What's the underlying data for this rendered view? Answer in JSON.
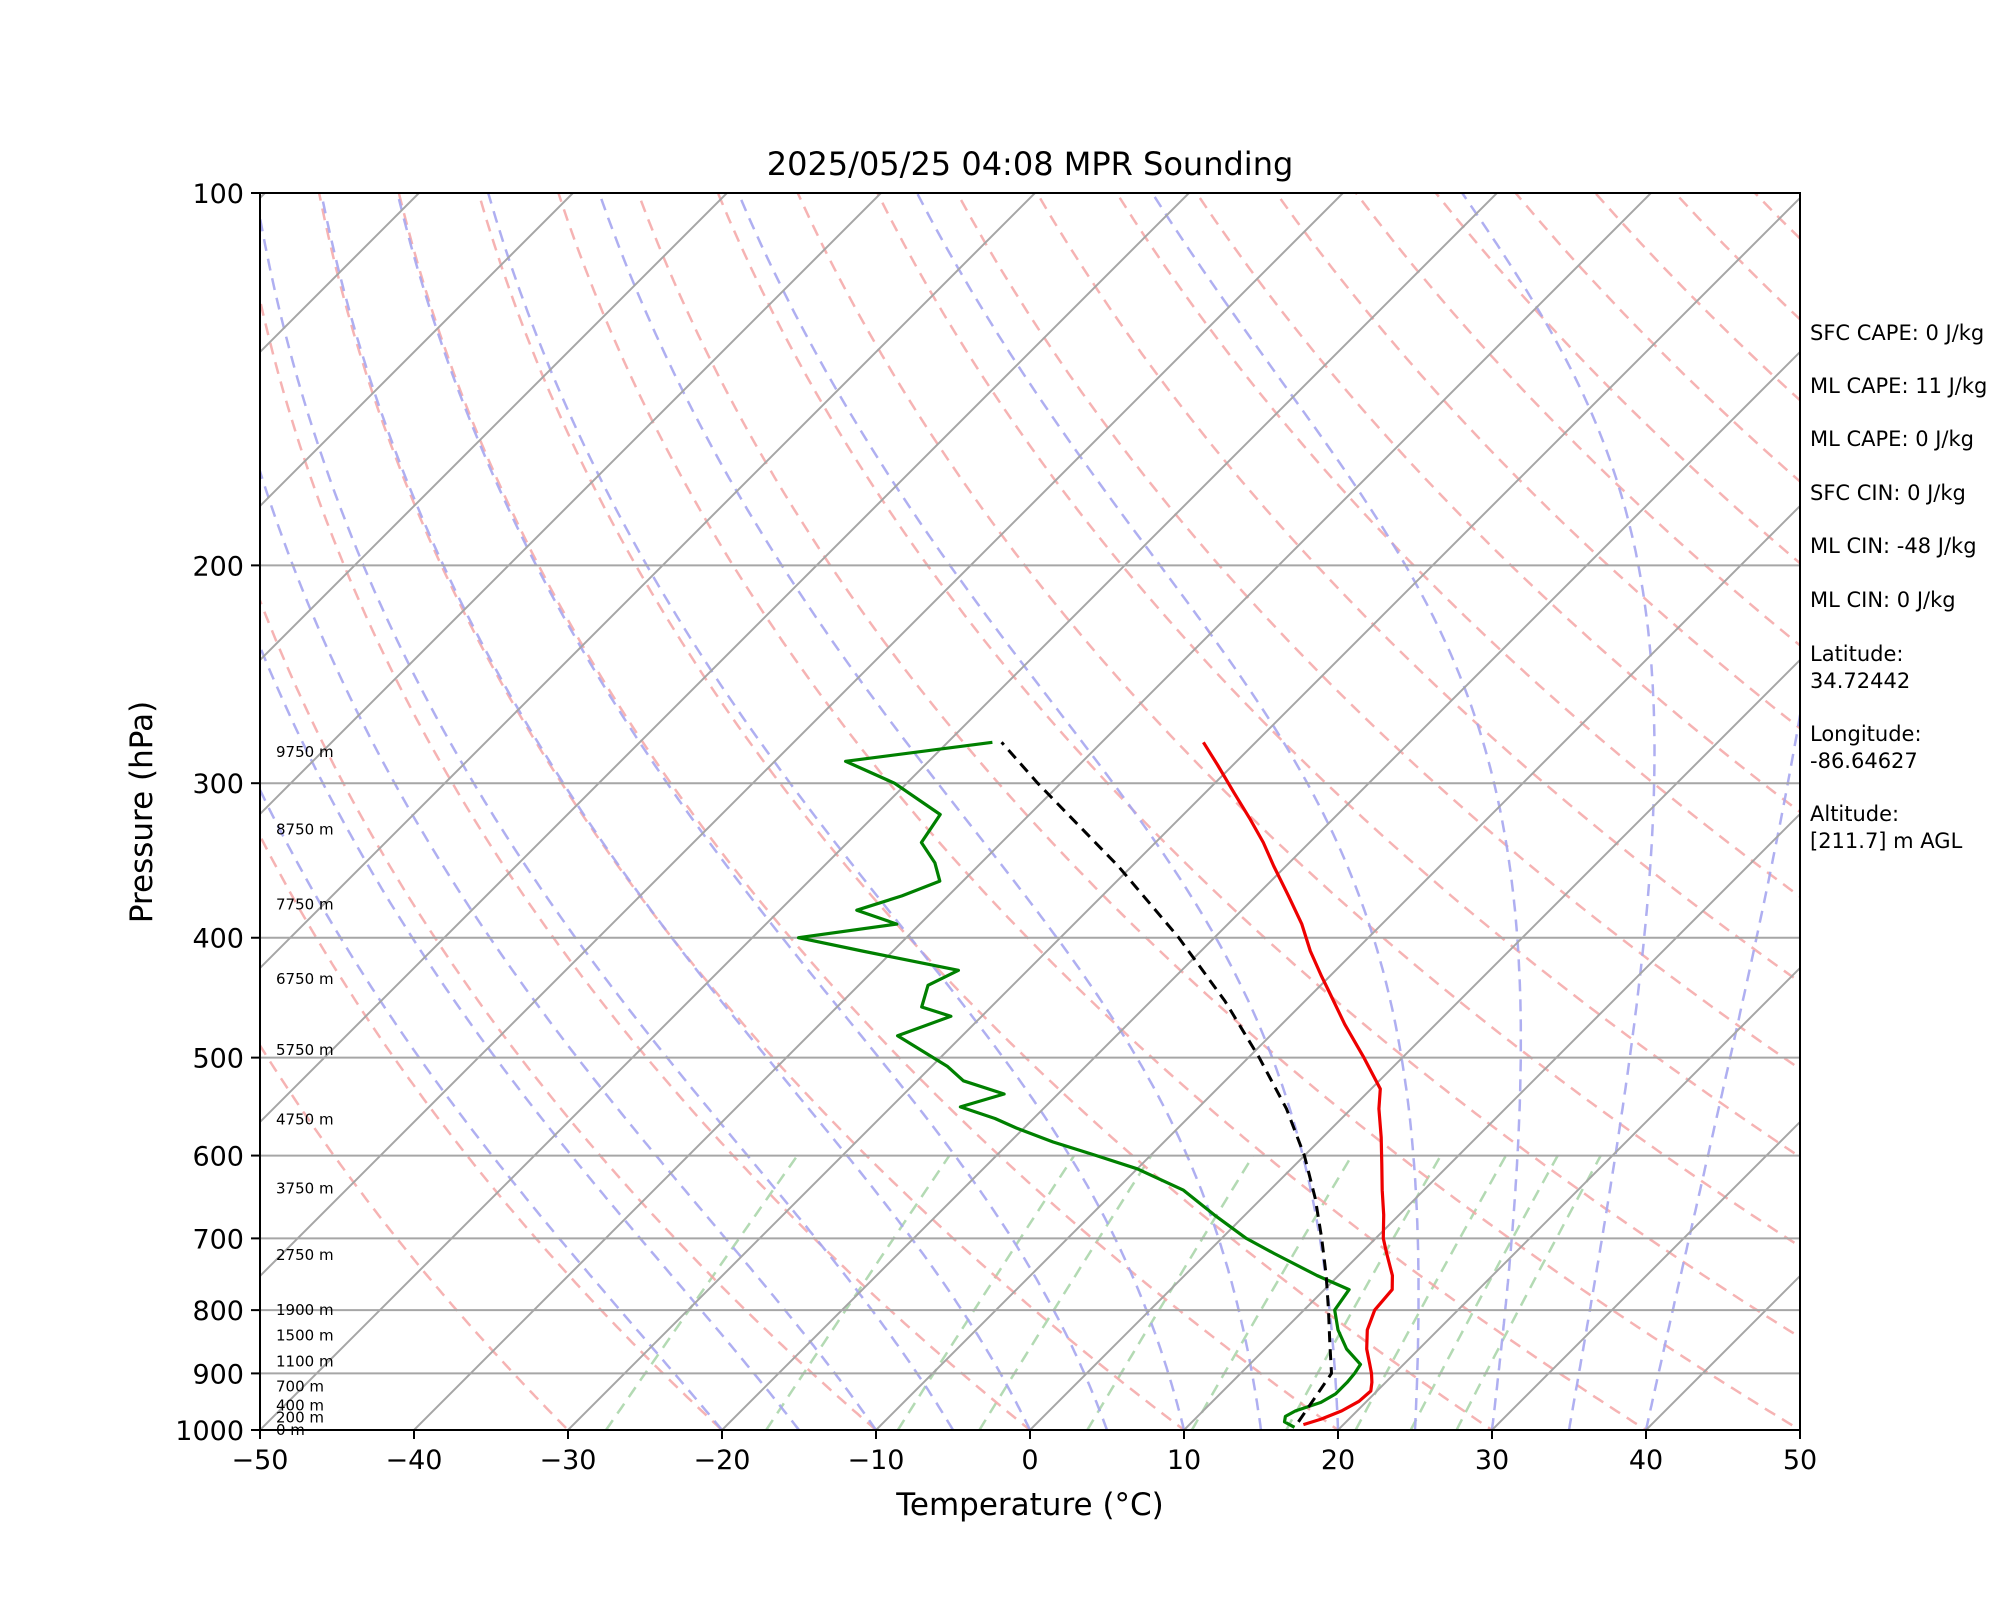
{
  "chart_data": {
    "type": "line",
    "subtype": "skew-t log-p diagram",
    "title": "2025/05/25 04:08 MPR Sounding",
    "xlabel": "Temperature (°C)",
    "ylabel": "Pressure (hPa)",
    "xlim": [
      -50,
      50
    ],
    "ylim": [
      1000,
      100
    ],
    "y_scale": "log",
    "x_ticks": [
      "−50",
      "−40",
      "−30",
      "−20",
      "−10",
      "0",
      "10",
      "20",
      "30",
      "40",
      "50"
    ],
    "x_tick_values": [
      -50,
      -40,
      -30,
      -20,
      -10,
      0,
      10,
      20,
      30,
      40,
      50
    ],
    "y_ticks": [
      "100",
      "200",
      "300",
      "400",
      "500",
      "600",
      "700",
      "800",
      "900",
      "1000"
    ],
    "y_tick_values": [
      100,
      200,
      300,
      400,
      500,
      600,
      700,
      800,
      900,
      1000
    ],
    "grid": true,
    "background_lines": {
      "isotherms_color": "#a6a6a6",
      "dry_adiabats_color": "#f4a6a6",
      "moist_adiabats_color": "#a6a6ef",
      "mixing_ratio_color": "#a6d4a6"
    },
    "height_labels": [
      {
        "label": "0 m",
        "pressure": 1000
      },
      {
        "label": "200 m",
        "pressure": 977
      },
      {
        "label": "400 m",
        "pressure": 955
      },
      {
        "label": "700 m",
        "pressure": 922
      },
      {
        "label": "1100 m",
        "pressure": 880
      },
      {
        "label": "1500 m",
        "pressure": 839
      },
      {
        "label": "1900 m",
        "pressure": 800
      },
      {
        "label": "2750 m",
        "pressure": 722
      },
      {
        "label": "3750 m",
        "pressure": 638
      },
      {
        "label": "4750 m",
        "pressure": 561
      },
      {
        "label": "5750 m",
        "pressure": 493
      },
      {
        "label": "6750 m",
        "pressure": 432
      },
      {
        "label": "7750 m",
        "pressure": 376
      },
      {
        "label": "8750 m",
        "pressure": 327
      },
      {
        "label": "9750 m",
        "pressure": 283
      }
    ],
    "series": [
      {
        "name": "temperature",
        "color": "#ee0000",
        "points": [
          [
            990,
            17.4
          ],
          [
            980,
            18.2
          ],
          [
            965,
            19.0
          ],
          [
            948,
            19.5
          ],
          [
            930,
            19.6
          ],
          [
            915,
            19.1
          ],
          [
            900,
            18.5
          ],
          [
            885,
            17.8
          ],
          [
            860,
            16.6
          ],
          [
            830,
            15.4
          ],
          [
            800,
            14.6
          ],
          [
            770,
            14.4
          ],
          [
            750,
            13.5
          ],
          [
            720,
            11.7
          ],
          [
            700,
            10.5
          ],
          [
            670,
            9.0
          ],
          [
            640,
            7.3
          ],
          [
            610,
            5.6
          ],
          [
            580,
            3.8
          ],
          [
            550,
            1.8
          ],
          [
            530,
            0.6
          ],
          [
            500,
            -2.5
          ],
          [
            470,
            -5.9
          ],
          [
            440,
            -9.3
          ],
          [
            430,
            -10.5
          ],
          [
            410,
            -12.9
          ],
          [
            390,
            -15.2
          ],
          [
            370,
            -17.9
          ],
          [
            350,
            -20.8
          ],
          [
            335,
            -23.0
          ],
          [
            320,
            -25.5
          ],
          [
            305,
            -28.2
          ],
          [
            290,
            -31.0
          ],
          [
            278,
            -33.4
          ]
        ]
      },
      {
        "name": "dewpoint",
        "color": "#008000",
        "points": [
          [
            995,
            17.0
          ],
          [
            985,
            16.0
          ],
          [
            975,
            15.7
          ],
          [
            965,
            16.0
          ],
          [
            950,
            17.1
          ],
          [
            935,
            17.5
          ],
          [
            915,
            17.5
          ],
          [
            900,
            17.4
          ],
          [
            885,
            17.2
          ],
          [
            860,
            15.3
          ],
          [
            830,
            13.5
          ],
          [
            800,
            12.0
          ],
          [
            770,
            11.6
          ],
          [
            750,
            8.6
          ],
          [
            720,
            4.4
          ],
          [
            700,
            1.6
          ],
          [
            670,
            -2.0
          ],
          [
            640,
            -5.6
          ],
          [
            615,
            -10.0
          ],
          [
            600,
            -13.5
          ],
          [
            585,
            -17.2
          ],
          [
            570,
            -20.5
          ],
          [
            560,
            -22.5
          ],
          [
            548,
            -25.5
          ],
          [
            535,
            -23.5
          ],
          [
            522,
            -27.0
          ],
          [
            508,
            -29.0
          ],
          [
            480,
            -34.2
          ],
          [
            463,
            -32.0
          ],
          [
            455,
            -34.5
          ],
          [
            437,
            -35.5
          ],
          [
            425,
            -34.5
          ],
          [
            410,
            -42.0
          ],
          [
            400,
            -47.0
          ],
          [
            390,
            -41.5
          ],
          [
            380,
            -45.0
          ],
          [
            370,
            -43.0
          ],
          [
            360,
            -41.5
          ],
          [
            348,
            -43.0
          ],
          [
            335,
            -45.2
          ],
          [
            318,
            -45.8
          ],
          [
            300,
            -50.8
          ],
          [
            288,
            -55.4
          ],
          [
            278,
            -47.1
          ]
        ]
      },
      {
        "name": "parcel",
        "color": "#000000",
        "style": "dashed",
        "points": [
          [
            985,
            16.9
          ],
          [
            900,
            15.9
          ],
          [
            850,
            13.8
          ],
          [
            800,
            11.6
          ],
          [
            750,
            9.2
          ],
          [
            700,
            6.5
          ],
          [
            650,
            3.5
          ],
          [
            600,
            0.0
          ],
          [
            550,
            -4.2
          ],
          [
            500,
            -9.3
          ],
          [
            450,
            -15.2
          ],
          [
            400,
            -22.3
          ],
          [
            350,
            -30.9
          ],
          [
            300,
            -41.5
          ],
          [
            278,
            -46.5
          ]
        ]
      }
    ]
  },
  "info_panel": [
    {
      "id": "sfc_cape",
      "text": "SFC CAPE: 0 J/kg"
    },
    {
      "id": "ml_cape_1",
      "text": "ML CAPE: 11 J/kg"
    },
    {
      "id": "ml_cape_2",
      "text": "ML CAPE: 0 J/kg"
    },
    {
      "id": "sfc_cin",
      "text": "SFC CIN: 0 J/kg"
    },
    {
      "id": "ml_cin_1",
      "text": "ML CIN: -48 J/kg"
    },
    {
      "id": "ml_cin_2",
      "text": "ML CIN: 0 J/kg"
    },
    {
      "id": "latitude_label",
      "text": "Latitude:"
    },
    {
      "id": "latitude_value",
      "text": "34.72442"
    },
    {
      "id": "longitude_label",
      "text": "Longitude:"
    },
    {
      "id": "longitude_value",
      "text": "-86.64627"
    },
    {
      "id": "altitude_label",
      "text": "Altitude:"
    },
    {
      "id": "altitude_value",
      "text": "[211.7] m AGL"
    }
  ]
}
